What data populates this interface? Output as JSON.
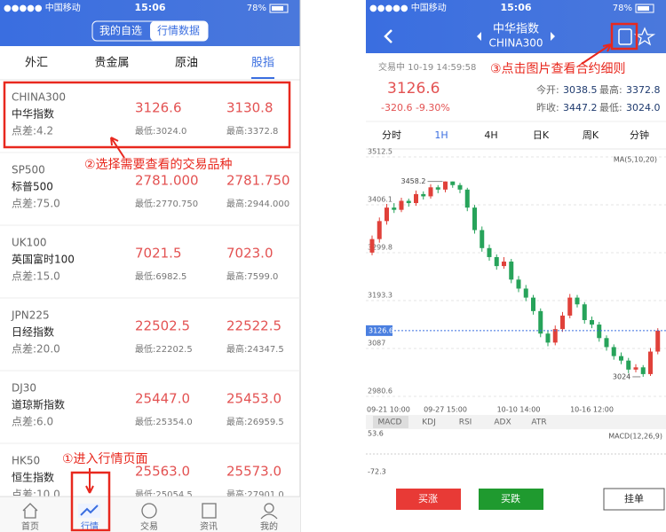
{
  "left_screen": {
    "status": {
      "carrier": "●●●●● 中国移动",
      "time": "15:06",
      "battery": "78%"
    },
    "segments": [
      "我的自选",
      "行情数据"
    ],
    "tabs": [
      "外汇",
      "贵金属",
      "原油",
      "股指"
    ],
    "rows": [
      {
        "code": "CHINA300",
        "name": "中华指数",
        "spread": "点差:4.2",
        "sell": "3126.6",
        "buy": "3130.8",
        "low": "最低:3024.0",
        "high": "最高:3372.8"
      },
      {
        "code": "SP500",
        "name": "标普500",
        "spread": "点差:75.0",
        "sell": "2781.000",
        "buy": "2781.750",
        "low": "最低:2770.750",
        "high": "最高:2944.000"
      },
      {
        "code": "UK100",
        "name": "英国富时100",
        "spread": "点差:15.0",
        "sell": "7021.5",
        "buy": "7023.0",
        "low": "最低:6982.5",
        "high": "最高:7599.0"
      },
      {
        "code": "JPN225",
        "name": "日经指数",
        "spread": "点差:20.0",
        "sell": "22502.5",
        "buy": "22522.5",
        "low": "最低:22202.5",
        "high": "最高:24347.5"
      },
      {
        "code": "DJ30",
        "name": "道琼斯指数",
        "spread": "点差:6.0",
        "sell": "25447.0",
        "buy": "25453.0",
        "low": "最低:25354.0",
        "high": "最高:26959.5"
      },
      {
        "code": "HK50",
        "name": "恒生指数",
        "spread": "点差:10.0",
        "sell": "25563.0",
        "buy": "25573.0",
        "low": "最低:25054.5",
        "high": "最高:27901.0"
      }
    ],
    "nav": [
      "首页",
      "行情",
      "交易",
      "资讯",
      "我的"
    ],
    "annotations": [
      "②选择需要查看的交易品种",
      "①进入行情页面"
    ]
  },
  "right_screen": {
    "status": {
      "carrier": "●●●●● 中国移动",
      "time": "15:06",
      "battery": "78%"
    },
    "title": "中华指数",
    "code": "CHINA300",
    "annotation": "③点击图片查看合约细则",
    "trade_time": "交易中 10-19 14:59:58",
    "price": "3126.6",
    "change": "-320.6  -9.30%",
    "stats": [
      [
        "今开:",
        "3038.5"
      ],
      [
        "最高:",
        "3372.8"
      ],
      [
        "昨收:",
        "3447.2"
      ],
      [
        "最低:",
        "3024.0"
      ]
    ],
    "periods": [
      "分时",
      "1H",
      "4H",
      "日K",
      "周K",
      "分钟"
    ],
    "indicators": [
      "MACD",
      "KDJ",
      "RSI",
      "ADX",
      "ATR"
    ],
    "macd_label": "MACD(12,26,9)",
    "buttons": [
      "买涨",
      "买跌",
      "挂单"
    ]
  },
  "chart_data": {
    "type": "candlestick",
    "legend": "MA(5,10,20)",
    "x": [
      "09-21 10:00",
      null,
      null,
      null,
      null,
      null,
      null,
      null,
      null,
      null,
      "09-27 15:00",
      null,
      null,
      null,
      null,
      null,
      null,
      null,
      null,
      null,
      "10-10 14:00",
      null,
      null,
      null,
      null,
      null,
      null,
      null,
      null,
      null,
      "10-16 12:00",
      null,
      null,
      null,
      null,
      null,
      null,
      null,
      null,
      null
    ],
    "candles": [
      [
        3300,
        3338,
        3294,
        3330
      ],
      [
        3330,
        3378,
        3322,
        3370
      ],
      [
        3370,
        3408,
        3362,
        3400
      ],
      [
        3400,
        3410,
        3388,
        3395
      ],
      [
        3395,
        3422,
        3390,
        3415
      ],
      [
        3415,
        3420,
        3402,
        3410
      ],
      [
        3410,
        3438,
        3404,
        3430
      ],
      [
        3430,
        3436,
        3418,
        3425
      ],
      [
        3425,
        3452,
        3420,
        3445
      ],
      [
        3445,
        3450,
        3432,
        3440
      ],
      [
        3440,
        3458.2,
        3434,
        3458
      ],
      [
        3458,
        3458,
        3444,
        3450
      ],
      [
        3450,
        3455,
        3432,
        3440
      ],
      [
        3440,
        3444,
        3392,
        3400
      ],
      [
        3400,
        3406,
        3342,
        3350
      ],
      [
        3350,
        3358,
        3302,
        3310
      ],
      [
        3310,
        3318,
        3282,
        3290
      ],
      [
        3290,
        3296,
        3262,
        3270
      ],
      [
        3270,
        3290,
        3264,
        3280
      ],
      [
        3280,
        3286,
        3232,
        3240
      ],
      [
        3240,
        3248,
        3212,
        3220
      ],
      [
        3220,
        3228,
        3192,
        3200
      ],
      [
        3200,
        3206,
        3162,
        3170
      ],
      [
        3170,
        3176,
        3112,
        3120
      ],
      [
        3120,
        3126,
        3092,
        3100
      ],
      [
        3100,
        3138,
        3094,
        3130
      ],
      [
        3130,
        3168,
        3124,
        3160
      ],
      [
        3160,
        3208,
        3154,
        3200
      ],
      [
        3200,
        3206,
        3178,
        3185
      ],
      [
        3185,
        3190,
        3142,
        3150
      ],
      [
        3150,
        3158,
        3132,
        3140
      ],
      [
        3140,
        3146,
        3102,
        3110
      ],
      [
        3110,
        3116,
        3082,
        3090
      ],
      [
        3090,
        3096,
        3062,
        3070
      ],
      [
        3070,
        3078,
        3052,
        3060
      ],
      [
        3060,
        3066,
        3032,
        3040
      ],
      [
        3040,
        3052,
        3034,
        3045
      ],
      [
        3045,
        3050,
        3024,
        3030
      ],
      [
        3030,
        3088,
        3026,
        3080
      ],
      [
        3080,
        3132,
        3074,
        3126.6
      ]
    ],
    "ylim": [
      2964.8,
      3522.4
    ],
    "yticks": [
      3512.5,
      3406.1,
      3299.8,
      3193.3,
      3087.0,
      2980.6
    ],
    "current": 3126.6,
    "high_label": 3458.2,
    "low_label": 3024.0,
    "macd_ylim": [
      -84,
      62.4
    ],
    "macd_yticks": [
      53.6,
      -72.3
    ],
    "up_color": "#e0413a",
    "down_color": "#27a35a",
    "grid": true
  }
}
